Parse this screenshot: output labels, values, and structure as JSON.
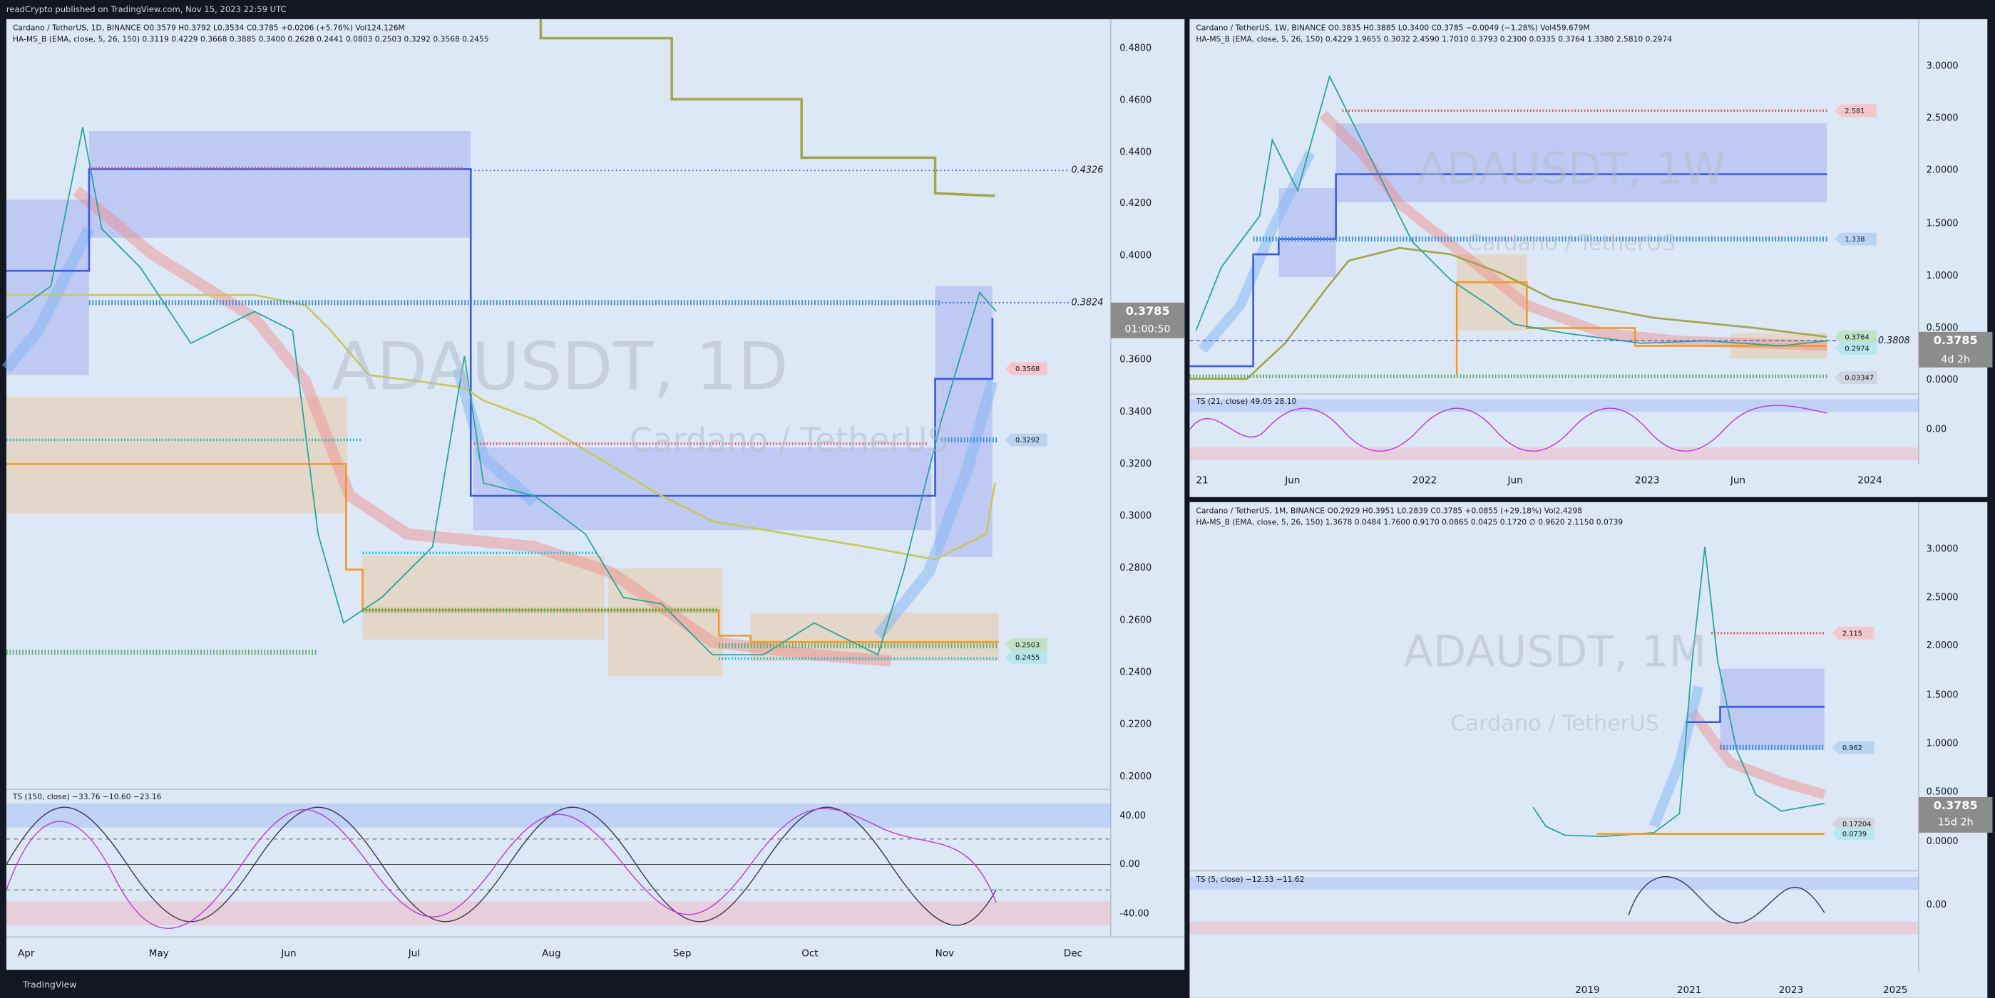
{
  "header": {
    "text": "readCrypto published on TradingView.com, Nov 15, 2023 22:59 UTC"
  },
  "footer": {
    "brand": "TradingView"
  },
  "panels": [
    {
      "legend": [
        "Cardano / TetherUS, 1D, BINANCE  O0.3579 H0.3792 L0.3534 C0.3785 +0.0206 (+5.76%) Vol124.126M",
        "HA-MS_B (EMA, close, 5, 26, 150)  0.3119 0.4229 0.3668 0.3885 0.3400 0.2628 0.2441 0.0803 0.2503 0.3292 0.3568 0.2455"
      ],
      "watermark": {
        "symbol": "ADAUSDT, 1D",
        "name": "Cardano / TetherUS"
      },
      "price_axis": [
        "0.4800",
        "0.4600",
        "0.4400",
        "0.4200",
        "0.4000",
        "0.3600",
        "0.3400",
        "0.3200",
        "0.3000",
        "0.2800",
        "0.2600",
        "0.2400",
        "0.2200",
        "0.2000"
      ],
      "line_labels": [
        "0.4326",
        "0.3824"
      ],
      "price_tags": [
        "0.3568",
        "0.3292",
        "0.2503",
        "0.2455"
      ],
      "current_price": "0.3785",
      "countdown": "01:00:50",
      "time_axis": [
        "Apr",
        "May",
        "Jun",
        "Jul",
        "Aug",
        "Sep",
        "Oct",
        "Nov",
        "Dec"
      ],
      "oscillator": {
        "legend": "TS (150, close)  −33.76  −10.60  −23.16",
        "axis": [
          "40.00",
          "0.00",
          "-40.00"
        ]
      }
    },
    {
      "legend": [
        "Cardano / TetherUS, 1W, BINANCE  O0.3835 H0.3885 L0.3400 C0.3785 −0.0049 (−1.28%) Vol459.679M",
        "HA-MS_B (EMA, close, 5, 26, 150)  0.4229 1.9655 0.3032 2.4590 1.7010 0.3793 0.2300 0.0335 0.3764 1.3380 2.5810 0.2974"
      ],
      "watermark": {
        "symbol": "ADAUSDT, 1W",
        "name": "Cardano / TetherUS"
      },
      "price_axis": [
        "3.0000",
        "2.5000",
        "2.0000",
        "1.5000",
        "1.0000",
        "0.5000",
        "0.0000"
      ],
      "line_labels": [
        "0.3808"
      ],
      "price_tags": [
        "2.581",
        "1.338",
        "0.3764",
        "0.2974",
        "0.03347"
      ],
      "current_price": "0.3785",
      "countdown": "4d 2h",
      "time_axis": [
        "21",
        "Jun",
        "2022",
        "Jun",
        "2023",
        "Jun",
        "2024"
      ],
      "oscillator": {
        "legend": "TS (21, close)  49.05  28.10",
        "axis": [
          "0.00"
        ]
      }
    },
    {
      "legend": [
        "Cardano / TetherUS, 1M, BINANCE  O0.2929 H0.3951 L0.2839 C0.3785 +0.0855 (+29.18%) Vol2.4298",
        "HA-MS_B (EMA, close, 5, 26, 150)  1.3678 0.0484 1.7600 0.9170 0.0865 0.0425 0.1720 ∅ 0.9620 2.1150 0.0739"
      ],
      "watermark": {
        "symbol": "ADAUSDT, 1M",
        "name": "Cardano / TetherUS"
      },
      "price_axis": [
        "3.0000",
        "2.5000",
        "2.0000",
        "1.5000",
        "1.0000",
        "0.5000",
        "0.0000"
      ],
      "line_labels": [],
      "price_tags": [
        "2.115",
        "0.962",
        "0.17204",
        "0.0739"
      ],
      "current_price": "0.3785",
      "countdown": "15d 2h",
      "time_axis": [
        "2019",
        "2021",
        "2023",
        "2025"
      ],
      "oscillator": {
        "legend": "TS (5, close)  −12.33  −11.62",
        "axis": [
          "0.00"
        ]
      }
    }
  ]
}
